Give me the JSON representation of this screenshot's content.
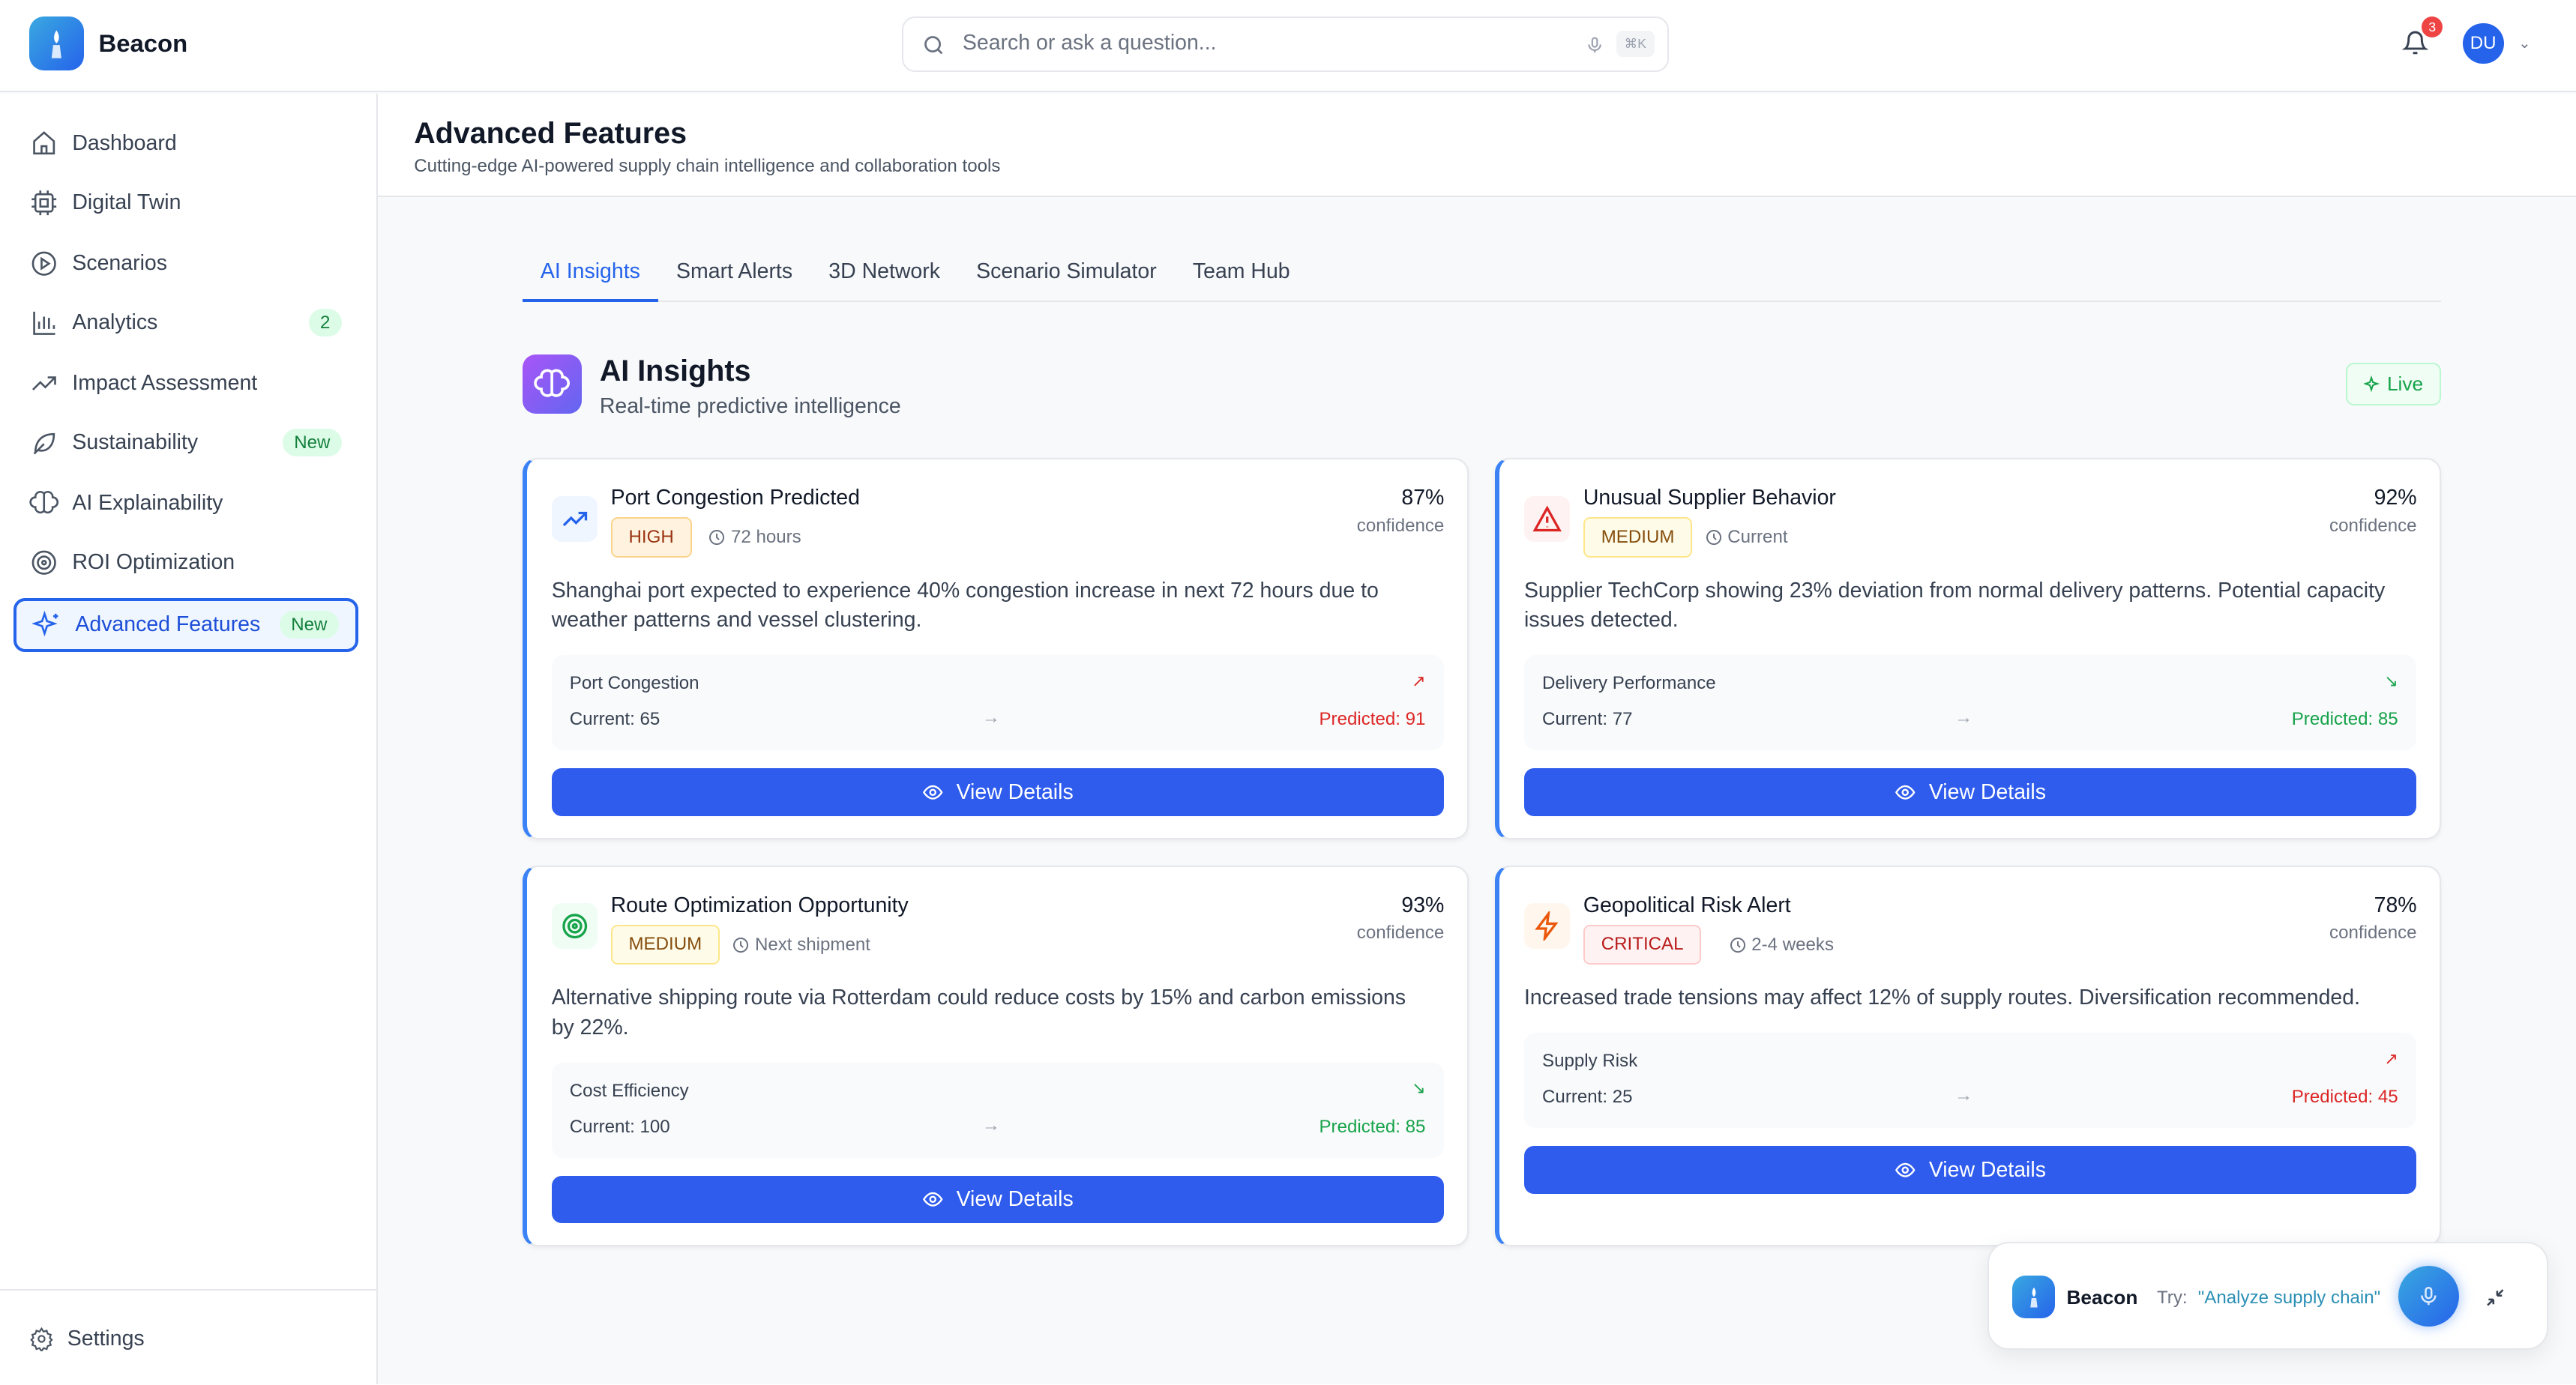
{
  "header": {
    "brand": "Beacon",
    "search_placeholder": "Search or ask a question...",
    "shortcut": "⌘K",
    "notifications": "3",
    "avatar": "DU"
  },
  "sidebar": {
    "items": [
      {
        "label": "Dashboard",
        "icon": "home-icon"
      },
      {
        "label": "Digital Twin",
        "icon": "cpu-icon"
      },
      {
        "label": "Scenarios",
        "icon": "play-circle-icon"
      },
      {
        "label": "Analytics",
        "icon": "bar-chart-icon",
        "badge": "2"
      },
      {
        "label": "Impact Assessment",
        "icon": "trending-up-icon"
      },
      {
        "label": "Sustainability",
        "icon": "leaf-icon",
        "badge": "New"
      },
      {
        "label": "AI Explainability",
        "icon": "brain-icon"
      },
      {
        "label": "ROI Optimization",
        "icon": "target-icon"
      },
      {
        "label": "Advanced Features",
        "icon": "sparkles-icon",
        "badge": "New",
        "active": true
      }
    ],
    "settings": "Settings"
  },
  "page": {
    "title": "Advanced Features",
    "subtitle": "Cutting-edge AI-powered supply chain intelligence and collaboration tools"
  },
  "tabs": [
    "AI Insights",
    "Smart Alerts",
    "3D Network",
    "Scenario Simulator",
    "Team Hub"
  ],
  "section": {
    "title": "AI Insights",
    "subtitle": "Real-time predictive intelligence",
    "live": "Live"
  },
  "cards": [
    {
      "title": "Port Congestion Predicted",
      "severity": "HIGH",
      "time": "72 hours",
      "confidence": "87%",
      "confidence_label": "confidence",
      "description": "Shanghai port expected to experience 40% congestion increase in next 72 hours due to weather patterns and vessel clustering.",
      "metric": "Port Congestion",
      "current": "Current: 65",
      "predicted": "Predicted: 91",
      "trend": "up",
      "button": "View Details"
    },
    {
      "title": "Unusual Supplier Behavior",
      "severity": "MEDIUM",
      "time": "Current",
      "confidence": "92%",
      "confidence_label": "confidence",
      "description": "Supplier TechCorp showing 23% deviation from normal delivery patterns. Potential capacity issues detected.",
      "metric": "Delivery Performance",
      "current": "Current: 77",
      "predicted": "Predicted: 85",
      "trend": "down",
      "button": "View Details"
    },
    {
      "title": "Route Optimization Opportunity",
      "severity": "MEDIUM",
      "time": "Next shipment",
      "confidence": "93%",
      "confidence_label": "confidence",
      "description": "Alternative shipping route via Rotterdam could reduce costs by 15% and carbon emissions by 22%.",
      "metric": "Cost Efficiency",
      "current": "Current: 100",
      "predicted": "Predicted: 85",
      "trend": "down",
      "button": "View Details"
    },
    {
      "title": "Geopolitical Risk Alert",
      "severity": "CRITICAL",
      "time": "2-4 weeks",
      "confidence": "78%",
      "confidence_label": "confidence",
      "description": "Increased trade tensions may affect 12% of supply routes. Diversification recommended.",
      "metric": "Supply Risk",
      "current": "Current: 25",
      "predicted": "Predicted: 45",
      "trend": "up",
      "button": "View Details"
    }
  ],
  "voice": {
    "brand": "Beacon",
    "try": "Try:",
    "suggestion": "\"Analyze supply chain\""
  },
  "colors": {
    "accent": "#2563eb",
    "button": "#2f5ced",
    "danger": "#dc2626",
    "success": "#16a34a"
  }
}
